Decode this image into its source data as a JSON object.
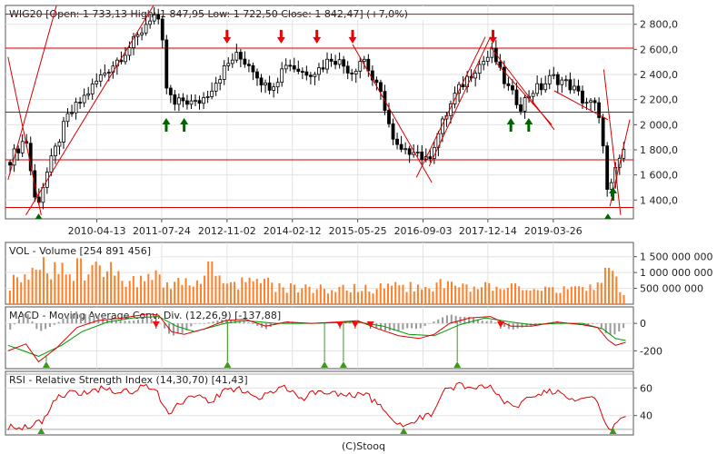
{
  "footer": "(C)Stooq",
  "colors": {
    "panel_bg": "#ffffff",
    "frame": "#555555",
    "grid": "#e2e2e2",
    "candle": "#000000",
    "level_line": "#d40000",
    "trend_line": "#d40000",
    "sell_arrow": "#ee0000",
    "buy_arrow": "#006400",
    "volume_bar": "#ff7f27",
    "macd_line": "#dd0000",
    "signal_line": "#009900",
    "histogram": "#999999",
    "rsi_line": "#dd0000",
    "rsi_bound": "#aaaaaa",
    "marker_up": "#3a9a1a",
    "marker_down": "#ee1111"
  },
  "chart_data": [
    {
      "type": "candlestick",
      "legend": "WIG20 [Open: 1 733,13  High: 1 847,95  Low: 1 722,50  Close: 1 842,47] (+7,0%)",
      "x_range": [
        2008.5,
        2020.8
      ],
      "ylim": [
        1250,
        2950
      ],
      "y_ticks": [
        1400,
        1600,
        1800,
        2000,
        2200,
        2400,
        2600,
        2800
      ],
      "y_tick_labels": [
        "1 400,0",
        "1 600,0",
        "1 800,0",
        "2 000,0",
        "2 200,0",
        "2 400,0",
        "2 600,0",
        "2 800,0"
      ],
      "x_ticks": [
        2010.29,
        2011.56,
        2012.84,
        2014.12,
        2015.4,
        2016.68,
        2017.95,
        2019.23
      ],
      "x_tick_labels": [
        "2010-04-13",
        "2011-07-24",
        "2012-11-02",
        "2014-02-12",
        "2015-05-25",
        "2016-09-03",
        "2017-12-14",
        "2019-03-26"
      ],
      "price_path": [
        [
          2008.55,
          1700
        ],
        [
          2008.9,
          1900
        ],
        [
          2009.1,
          1340
        ],
        [
          2009.3,
          1600
        ],
        [
          2009.7,
          2050
        ],
        [
          2010.0,
          2200
        ],
        [
          2010.4,
          2400
        ],
        [
          2010.8,
          2560
        ],
        [
          2011.1,
          2700
        ],
        [
          2011.3,
          2840
        ],
        [
          2011.4,
          2880
        ],
        [
          2011.55,
          2750
        ],
        [
          2011.65,
          2300
        ],
        [
          2011.8,
          2150
        ],
        [
          2012.0,
          2200
        ],
        [
          2012.2,
          2160
        ],
        [
          2012.4,
          2220
        ],
        [
          2012.8,
          2450
        ],
        [
          2013.0,
          2550
        ],
        [
          2013.3,
          2480
        ],
        [
          2013.6,
          2300
        ],
        [
          2013.8,
          2350
        ],
        [
          2014.0,
          2500
        ],
        [
          2014.3,
          2420
        ],
        [
          2014.6,
          2430
        ],
        [
          2014.9,
          2540
        ],
        [
          2015.1,
          2480
        ],
        [
          2015.3,
          2420
        ],
        [
          2015.5,
          2550
        ],
        [
          2015.7,
          2350
        ],
        [
          2015.9,
          2200
        ],
        [
          2016.1,
          1850
        ],
        [
          2016.3,
          1760
        ],
        [
          2016.5,
          1820
        ],
        [
          2016.75,
          1700
        ],
        [
          2016.9,
          1850
        ],
        [
          2017.1,
          2050
        ],
        [
          2017.3,
          2230
        ],
        [
          2017.5,
          2350
        ],
        [
          2017.7,
          2450
        ],
        [
          2017.9,
          2520
        ],
        [
          2018.05,
          2580
        ],
        [
          2018.2,
          2400
        ],
        [
          2018.4,
          2250
        ],
        [
          2018.6,
          2150
        ],
        [
          2018.8,
          2270
        ],
        [
          2019.0,
          2300
        ],
        [
          2019.2,
          2380
        ],
        [
          2019.4,
          2350
        ],
        [
          2019.6,
          2300
        ],
        [
          2019.8,
          2200
        ],
        [
          2020.05,
          2150
        ],
        [
          2020.2,
          1900
        ],
        [
          2020.3,
          1400
        ],
        [
          2020.4,
          1560
        ],
        [
          2020.55,
          1750
        ],
        [
          2020.65,
          1843
        ]
      ],
      "levels": [
        2880,
        2610,
        2100,
        1720,
        1340
      ],
      "trendlines": [
        [
          [
            2008.9,
            1280
          ],
          [
            2011.4,
            2950
          ]
        ],
        [
          [
            2008.55,
            1560
          ],
          [
            2009.5,
            2950
          ]
        ],
        [
          [
            2008.55,
            2540
          ],
          [
            2009.2,
            1280
          ]
        ],
        [
          [
            2015.3,
            2640
          ],
          [
            2016.85,
            1540
          ]
        ],
        [
          [
            2016.55,
            1580
          ],
          [
            2017.9,
            2700
          ]
        ],
        [
          [
            2016.8,
            1670
          ],
          [
            2018.0,
            2700
          ]
        ],
        [
          [
            2018.0,
            2620
          ],
          [
            2019.25,
            1960
          ]
        ],
        [
          [
            2018.1,
            2500
          ],
          [
            2019.2,
            2000
          ]
        ],
        [
          [
            2019.25,
            2270
          ],
          [
            2020.3,
            2040
          ]
        ],
        [
          [
            2020.22,
            2440
          ],
          [
            2020.55,
            1280
          ]
        ],
        [
          [
            2020.34,
            1350
          ],
          [
            2020.73,
            2040
          ]
        ]
      ],
      "sell_arrows": [
        [
          2012.84,
          2640
        ],
        [
          2013.9,
          2640
        ],
        [
          2014.6,
          2640
        ],
        [
          2015.3,
          2640
        ],
        [
          2018.05,
          2640
        ]
      ],
      "buy_arrows": [
        [
          2009.15,
          1300
        ],
        [
          2011.65,
          2060
        ],
        [
          2012.0,
          2060
        ],
        [
          2018.4,
          2060
        ],
        [
          2018.75,
          2060
        ],
        [
          2020.3,
          1300
        ],
        [
          2020.4,
          1510
        ]
      ]
    },
    {
      "type": "bar",
      "legend": "VOL - Volume [254 891 456]",
      "ylim": [
        0,
        1950000000
      ],
      "y_ticks": [
        500000000,
        1000000000,
        1500000000
      ],
      "y_tick_labels": [
        "500 000 000",
        "1 000 000 000",
        "1 500 000 000"
      ],
      "profile": [
        [
          2008.55,
          700000000
        ],
        [
          2009.0,
          850000000
        ],
        [
          2009.3,
          1350000000
        ],
        [
          2009.6,
          1100000000
        ],
        [
          2010.0,
          950000000
        ],
        [
          2010.5,
          1150000000
        ],
        [
          2011.0,
          800000000
        ],
        [
          2011.5,
          850000000
        ],
        [
          2012.0,
          680000000
        ],
        [
          2012.5,
          780000000
        ],
        [
          2013.0,
          650000000
        ],
        [
          2013.5,
          700000000
        ],
        [
          2014.0,
          560000000
        ],
        [
          2014.5,
          520000000
        ],
        [
          2015.0,
          560000000
        ],
        [
          2015.5,
          540000000
        ],
        [
          2016.0,
          560000000
        ],
        [
          2016.5,
          560000000
        ],
        [
          2017.0,
          620000000
        ],
        [
          2017.5,
          640000000
        ],
        [
          2018.0,
          560000000
        ],
        [
          2018.5,
          520000000
        ],
        [
          2019.0,
          520000000
        ],
        [
          2019.5,
          500000000
        ],
        [
          2020.0,
          520000000
        ],
        [
          2020.25,
          1100000000
        ],
        [
          2020.4,
          900000000
        ],
        [
          2020.55,
          600000000
        ],
        [
          2020.65,
          255000000
        ]
      ],
      "spikes": [
        [
          2009.95,
          1450000000
        ],
        [
          2012.5,
          1350000000
        ],
        [
          2020.25,
          1150000000
        ]
      ]
    },
    {
      "type": "line",
      "legend": "MACD - Moving Average Conv. Div. (12,26,9) [-137,88]",
      "ylim": [
        -330,
        120
      ],
      "y_ticks": [
        0,
        -200
      ],
      "y_tick_labels": [
        "0",
        "-200"
      ],
      "series": [
        {
          "name": "MACD",
          "points": [
            [
              2008.55,
              -200
            ],
            [
              2008.9,
              -150
            ],
            [
              2009.15,
              -280
            ],
            [
              2009.5,
              -180
            ],
            [
              2009.9,
              -30
            ],
            [
              2010.3,
              20
            ],
            [
              2010.8,
              40
            ],
            [
              2011.3,
              70
            ],
            [
              2011.5,
              60
            ],
            [
              2011.75,
              -60
            ],
            [
              2012.0,
              -80
            ],
            [
              2012.4,
              -40
            ],
            [
              2012.8,
              20
            ],
            [
              2013.2,
              30
            ],
            [
              2013.6,
              -20
            ],
            [
              2014.0,
              10
            ],
            [
              2014.5,
              0
            ],
            [
              2015.0,
              10
            ],
            [
              2015.4,
              20
            ],
            [
              2015.8,
              -40
            ],
            [
              2016.2,
              -90
            ],
            [
              2016.6,
              -110
            ],
            [
              2016.9,
              -80
            ],
            [
              2017.2,
              0
            ],
            [
              2017.6,
              40
            ],
            [
              2018.0,
              50
            ],
            [
              2018.4,
              -20
            ],
            [
              2018.8,
              -20
            ],
            [
              2019.3,
              10
            ],
            [
              2019.8,
              -10
            ],
            [
              2020.1,
              -30
            ],
            [
              2020.3,
              -120
            ],
            [
              2020.45,
              -160
            ],
            [
              2020.65,
              -138
            ]
          ]
        },
        {
          "name": "Signal",
          "points": [
            [
              2008.55,
              -160
            ],
            [
              2009.15,
              -240
            ],
            [
              2009.6,
              -160
            ],
            [
              2010.0,
              -60
            ],
            [
              2010.5,
              10
            ],
            [
              2011.0,
              40
            ],
            [
              2011.5,
              50
            ],
            [
              2011.85,
              -20
            ],
            [
              2012.2,
              -60
            ],
            [
              2012.8,
              0
            ],
            [
              2013.2,
              20
            ],
            [
              2013.8,
              0
            ],
            [
              2014.5,
              0
            ],
            [
              2015.4,
              10
            ],
            [
              2015.9,
              -20
            ],
            [
              2016.4,
              -80
            ],
            [
              2016.9,
              -90
            ],
            [
              2017.4,
              -10
            ],
            [
              2017.9,
              40
            ],
            [
              2018.4,
              10
            ],
            [
              2018.8,
              -10
            ],
            [
              2019.3,
              0
            ],
            [
              2019.8,
              0
            ],
            [
              2020.2,
              -40
            ],
            [
              2020.45,
              -110
            ],
            [
              2020.65,
              -125
            ]
          ]
        }
      ],
      "sell_markers": [
        2011.45,
        2015.05,
        2015.35,
        2015.65,
        2018.2
      ],
      "buy_markers": [
        2009.3,
        2012.85,
        2014.75,
        2015.12,
        2017.35
      ]
    },
    {
      "type": "line",
      "legend": "RSI - Relative Strength Index (14,30,70) [41,43]",
      "ylim": [
        26,
        72
      ],
      "y_ticks": [
        40,
        60
      ],
      "y_tick_labels": [
        "40",
        "60"
      ],
      "bounds": [
        30,
        70
      ],
      "series": [
        {
          "name": "RSI",
          "points": [
            [
              2008.55,
              32
            ],
            [
              2008.8,
              30
            ],
            [
              2009.0,
              33
            ],
            [
              2009.2,
              35
            ],
            [
              2009.5,
              52
            ],
            [
              2009.8,
              58
            ],
            [
              2010.1,
              55
            ],
            [
              2010.4,
              60
            ],
            [
              2010.7,
              56
            ],
            [
              2011.0,
              58
            ],
            [
              2011.3,
              62
            ],
            [
              2011.5,
              55
            ],
            [
              2011.7,
              40
            ],
            [
              2011.9,
              48
            ],
            [
              2012.2,
              55
            ],
            [
              2012.5,
              50
            ],
            [
              2012.8,
              58
            ],
            [
              2013.1,
              60
            ],
            [
              2013.4,
              52
            ],
            [
              2013.7,
              56
            ],
            [
              2014.0,
              60
            ],
            [
              2014.3,
              52
            ],
            [
              2014.6,
              58
            ],
            [
              2014.9,
              56
            ],
            [
              2015.2,
              54
            ],
            [
              2015.5,
              57
            ],
            [
              2015.8,
              48
            ],
            [
              2016.1,
              38
            ],
            [
              2016.3,
              33
            ],
            [
              2016.6,
              38
            ],
            [
              2016.85,
              42
            ],
            [
              2017.1,
              58
            ],
            [
              2017.4,
              62
            ],
            [
              2017.7,
              60
            ],
            [
              2018.0,
              63
            ],
            [
              2018.2,
              52
            ],
            [
              2018.5,
              45
            ],
            [
              2018.8,
              55
            ],
            [
              2019.1,
              58
            ],
            [
              2019.4,
              56
            ],
            [
              2019.7,
              52
            ],
            [
              2020.0,
              55
            ],
            [
              2020.15,
              45
            ],
            [
              2020.3,
              30
            ],
            [
              2020.45,
              33
            ],
            [
              2020.65,
              41
            ]
          ]
        }
      ],
      "markers": [
        2009.2,
        2016.3,
        2020.4
      ]
    }
  ]
}
